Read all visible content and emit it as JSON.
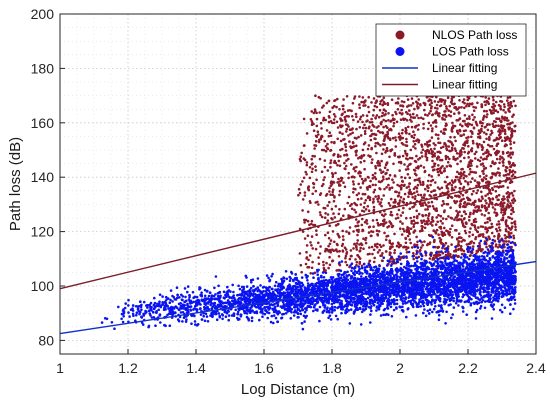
{
  "chart_data": {
    "type": "scatter",
    "title": "",
    "xlabel": "Log Distance (m)",
    "ylabel": "Path loss (dB)",
    "xlim": [
      1,
      2.4
    ],
    "ylim": [
      75,
      200
    ],
    "x_ticks": [
      1,
      1.2,
      1.4,
      1.6,
      1.8,
      2,
      2.2,
      2.4
    ],
    "x_tick_labels": [
      "1",
      "1.2",
      "1.4",
      "1.6",
      "1.8",
      "2",
      "2.2",
      "2.4"
    ],
    "y_ticks": [
      80,
      100,
      120,
      140,
      160,
      180,
      200
    ],
    "y_tick_labels": [
      "80",
      "100",
      "120",
      "140",
      "160",
      "180",
      "200"
    ],
    "grid": true,
    "minor_grid": true,
    "legend_position": "top-right",
    "series": [
      {
        "name": "NLOS Path loss",
        "kind": "scatter",
        "color": "#8b1a2a",
        "x_range": [
          1.7,
          2.34
        ],
        "y_range": [
          102,
          170
        ],
        "approx_points": 2500
      },
      {
        "name": "LOS Path loss",
        "kind": "scatter",
        "color": "#0a14f0",
        "x_range": [
          1.12,
          2.34
        ],
        "y_range": [
          84,
          118
        ],
        "approx_points": 5000
      },
      {
        "name": "Linear fitting",
        "kind": "line",
        "color": "#1030c8",
        "x": [
          1,
          2.4
        ],
        "y": [
          82.5,
          109
        ]
      },
      {
        "name": "Linear fitting",
        "kind": "line",
        "color": "#7a1e28",
        "x": [
          1,
          2.4
        ],
        "y": [
          99,
          141.5
        ]
      }
    ]
  }
}
